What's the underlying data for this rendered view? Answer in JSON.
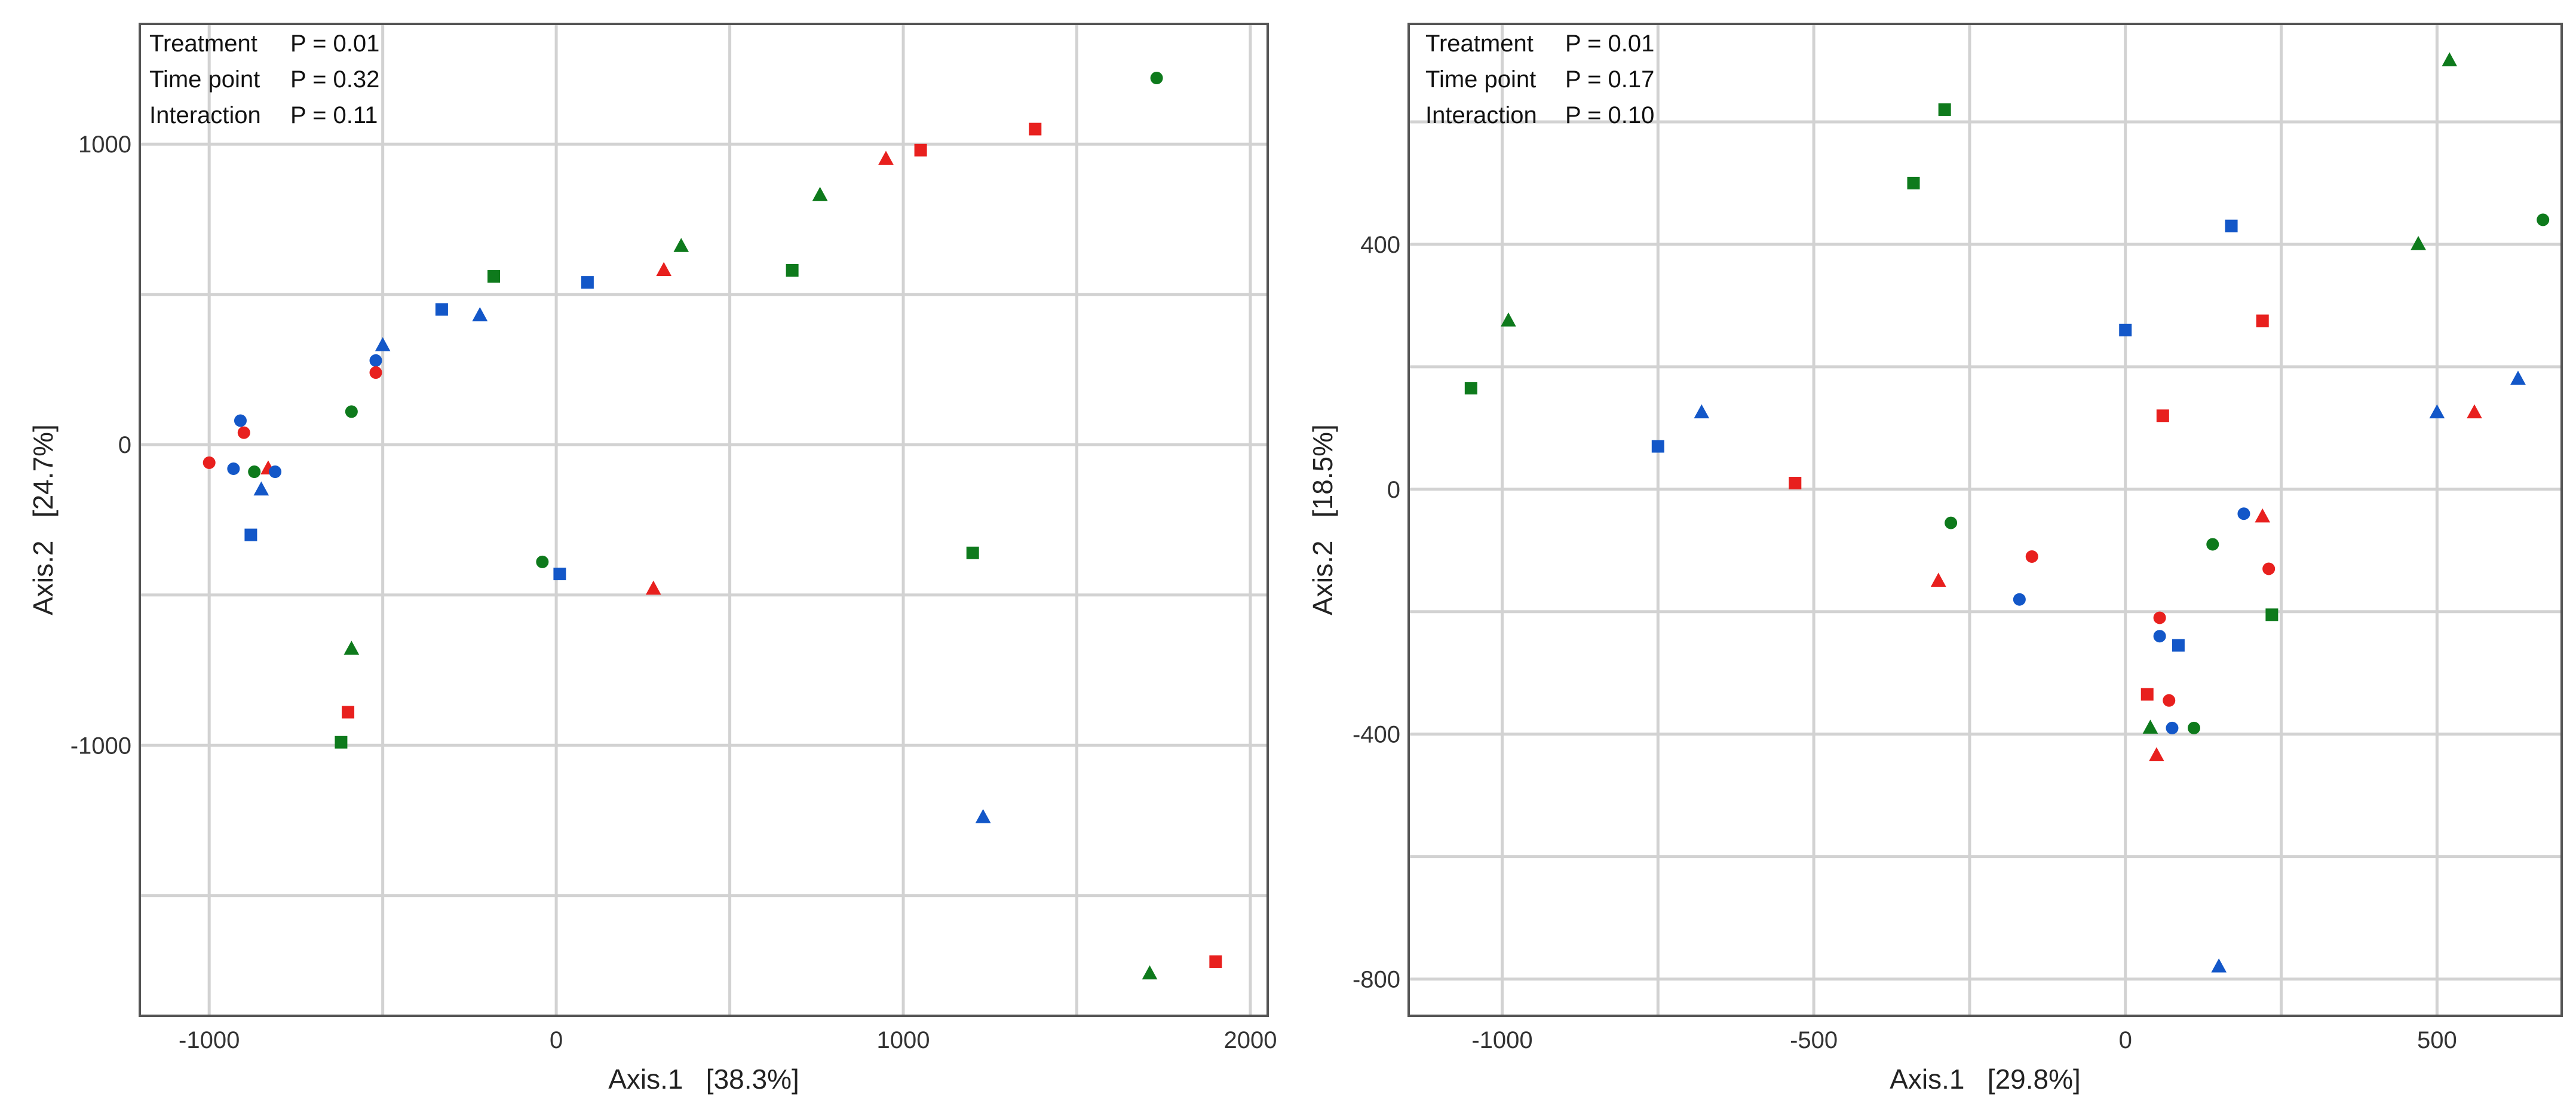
{
  "chart_data": [
    {
      "type": "scatter",
      "xlabel": "Axis.1   [38.3%]",
      "ylabel": "Axis.2   [24.7%]",
      "xlim": [
        -1200,
        2050
      ],
      "ylim": [
        -1900,
        1400
      ],
      "x_ticks": [
        -1000,
        0,
        1000,
        2000
      ],
      "y_ticks": [
        -1000,
        0,
        1000
      ],
      "x_tick_labels": [
        "-1000",
        "0",
        "1000",
        "2000"
      ],
      "y_tick_labels": [
        "-1000",
        "0",
        "1000"
      ],
      "grid": true,
      "annotations": [
        {
          "label": "Treatment",
          "value": "P = 0.01"
        },
        {
          "label": "Time point",
          "value": "P = 0.32"
        },
        {
          "label": "Interaction",
          "value": "P = 0.11"
        }
      ],
      "points": [
        {
          "x": 1730,
          "y": 1220,
          "color": "green",
          "shape": "circle"
        },
        {
          "x": 1380,
          "y": 1050,
          "color": "red",
          "shape": "square"
        },
        {
          "x": 1050,
          "y": 980,
          "color": "red",
          "shape": "square"
        },
        {
          "x": 950,
          "y": 950,
          "color": "red",
          "shape": "triangle"
        },
        {
          "x": 760,
          "y": 830,
          "color": "green",
          "shape": "triangle"
        },
        {
          "x": 680,
          "y": 580,
          "color": "green",
          "shape": "square"
        },
        {
          "x": 360,
          "y": 660,
          "color": "green",
          "shape": "triangle"
        },
        {
          "x": 310,
          "y": 580,
          "color": "red",
          "shape": "triangle"
        },
        {
          "x": 90,
          "y": 540,
          "color": "blue",
          "shape": "square"
        },
        {
          "x": -180,
          "y": 560,
          "color": "green",
          "shape": "square"
        },
        {
          "x": -330,
          "y": 450,
          "color": "blue",
          "shape": "square"
        },
        {
          "x": -220,
          "y": 430,
          "color": "blue",
          "shape": "triangle"
        },
        {
          "x": -500,
          "y": 330,
          "color": "blue",
          "shape": "triangle"
        },
        {
          "x": -520,
          "y": 280,
          "color": "blue",
          "shape": "circle"
        },
        {
          "x": -520,
          "y": 240,
          "color": "red",
          "shape": "circle"
        },
        {
          "x": -590,
          "y": 110,
          "color": "green",
          "shape": "circle"
        },
        {
          "x": -910,
          "y": 80,
          "color": "blue",
          "shape": "circle"
        },
        {
          "x": -900,
          "y": 40,
          "color": "red",
          "shape": "circle"
        },
        {
          "x": -1000,
          "y": -60,
          "color": "red",
          "shape": "circle"
        },
        {
          "x": -930,
          "y": -80,
          "color": "blue",
          "shape": "circle"
        },
        {
          "x": -870,
          "y": -90,
          "color": "green",
          "shape": "circle"
        },
        {
          "x": -830,
          "y": -80,
          "color": "red",
          "shape": "triangle"
        },
        {
          "x": -810,
          "y": -90,
          "color": "blue",
          "shape": "circle"
        },
        {
          "x": -850,
          "y": -150,
          "color": "blue",
          "shape": "triangle"
        },
        {
          "x": -880,
          "y": -300,
          "color": "blue",
          "shape": "square"
        },
        {
          "x": -40,
          "y": -390,
          "color": "green",
          "shape": "circle"
        },
        {
          "x": 10,
          "y": -430,
          "color": "blue",
          "shape": "square"
        },
        {
          "x": 280,
          "y": -480,
          "color": "red",
          "shape": "triangle"
        },
        {
          "x": 1200,
          "y": -360,
          "color": "green",
          "shape": "square"
        },
        {
          "x": -590,
          "y": -680,
          "color": "green",
          "shape": "triangle"
        },
        {
          "x": -600,
          "y": -890,
          "color": "red",
          "shape": "square"
        },
        {
          "x": -620,
          "y": -990,
          "color": "green",
          "shape": "square"
        },
        {
          "x": 1230,
          "y": -1240,
          "color": "blue",
          "shape": "triangle"
        },
        {
          "x": 1900,
          "y": -1720,
          "color": "red",
          "shape": "square"
        },
        {
          "x": 1710,
          "y": -1760,
          "color": "green",
          "shape": "triangle"
        }
      ]
    },
    {
      "type": "scatter",
      "xlabel": "Axis.1   [29.8%]",
      "ylabel": "Axis.2   [18.5%]",
      "xlim": [
        -1150,
        700
      ],
      "ylim": [
        -860,
        760
      ],
      "x_ticks": [
        -1000,
        -500,
        0,
        500
      ],
      "y_ticks": [
        -800,
        -400,
        0,
        400
      ],
      "x_tick_labels": [
        "-1000",
        "-500",
        "0",
        "500"
      ],
      "y_tick_labels": [
        "-800",
        "-400",
        "0",
        "400"
      ],
      "grid": true,
      "annotations": [
        {
          "label": "Treatment",
          "value": "P = 0.01"
        },
        {
          "label": "Time point",
          "value": "P = 0.17"
        },
        {
          "label": "Interaction",
          "value": "P = 0.10"
        }
      ],
      "points": [
        {
          "x": 520,
          "y": 700,
          "color": "green",
          "shape": "triangle"
        },
        {
          "x": -290,
          "y": 620,
          "color": "green",
          "shape": "square"
        },
        {
          "x": -340,
          "y": 500,
          "color": "green",
          "shape": "square"
        },
        {
          "x": 170,
          "y": 430,
          "color": "blue",
          "shape": "square"
        },
        {
          "x": 670,
          "y": 440,
          "color": "green",
          "shape": "circle"
        },
        {
          "x": 470,
          "y": 400,
          "color": "green",
          "shape": "triangle"
        },
        {
          "x": -990,
          "y": 275,
          "color": "green",
          "shape": "triangle"
        },
        {
          "x": 0,
          "y": 260,
          "color": "blue",
          "shape": "square"
        },
        {
          "x": 220,
          "y": 275,
          "color": "red",
          "shape": "square"
        },
        {
          "x": -1050,
          "y": 165,
          "color": "green",
          "shape": "square"
        },
        {
          "x": -680,
          "y": 125,
          "color": "blue",
          "shape": "triangle"
        },
        {
          "x": 60,
          "y": 120,
          "color": "red",
          "shape": "square"
        },
        {
          "x": 500,
          "y": 125,
          "color": "blue",
          "shape": "triangle"
        },
        {
          "x": 560,
          "y": 125,
          "color": "red",
          "shape": "triangle"
        },
        {
          "x": 630,
          "y": 180,
          "color": "blue",
          "shape": "triangle"
        },
        {
          "x": -750,
          "y": 70,
          "color": "blue",
          "shape": "square"
        },
        {
          "x": -530,
          "y": 10,
          "color": "red",
          "shape": "square"
        },
        {
          "x": -280,
          "y": -55,
          "color": "green",
          "shape": "circle"
        },
        {
          "x": 190,
          "y": -40,
          "color": "blue",
          "shape": "circle"
        },
        {
          "x": 220,
          "y": -45,
          "color": "red",
          "shape": "triangle"
        },
        {
          "x": 140,
          "y": -90,
          "color": "green",
          "shape": "circle"
        },
        {
          "x": -150,
          "y": -110,
          "color": "red",
          "shape": "circle"
        },
        {
          "x": 230,
          "y": -130,
          "color": "red",
          "shape": "circle"
        },
        {
          "x": -300,
          "y": -150,
          "color": "red",
          "shape": "triangle"
        },
        {
          "x": -170,
          "y": -180,
          "color": "blue",
          "shape": "circle"
        },
        {
          "x": 55,
          "y": -210,
          "color": "red",
          "shape": "circle"
        },
        {
          "x": 235,
          "y": -205,
          "color": "green",
          "shape": "square"
        },
        {
          "x": 55,
          "y": -240,
          "color": "blue",
          "shape": "circle"
        },
        {
          "x": 85,
          "y": -255,
          "color": "blue",
          "shape": "square"
        },
        {
          "x": 35,
          "y": -335,
          "color": "red",
          "shape": "square"
        },
        {
          "x": 70,
          "y": -345,
          "color": "red",
          "shape": "circle"
        },
        {
          "x": 40,
          "y": -390,
          "color": "green",
          "shape": "triangle"
        },
        {
          "x": 75,
          "y": -390,
          "color": "blue",
          "shape": "circle"
        },
        {
          "x": 110,
          "y": -390,
          "color": "green",
          "shape": "circle"
        },
        {
          "x": 50,
          "y": -435,
          "color": "red",
          "shape": "triangle"
        },
        {
          "x": 150,
          "y": -780,
          "color": "blue",
          "shape": "triangle"
        }
      ]
    }
  ],
  "colors": {
    "red": "#e8201e",
    "green": "#0e7a1c",
    "blue": "#1357c8"
  }
}
